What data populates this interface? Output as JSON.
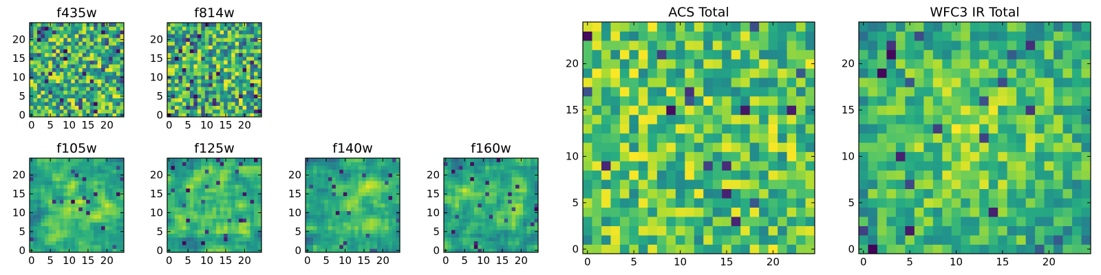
{
  "colormap": "viridis",
  "colors": {
    "low": "#440154",
    "mid_low": "#31688e",
    "mid": "#35b779",
    "high": "#90d743",
    "top": "#fde725",
    "frame": "#000000",
    "background": "#ffffff"
  },
  "chart_data": [
    {
      "type": "heatmap",
      "title": "f435w",
      "grid_size": [
        25,
        25
      ],
      "xlim": [
        -0.5,
        24.5
      ],
      "ylim": [
        -0.5,
        24.5
      ],
      "xticks": [
        "0",
        "5",
        "10",
        "15",
        "20"
      ],
      "yticks": [
        "0",
        "5",
        "10",
        "15",
        "20"
      ],
      "pattern": "uniform-noise",
      "seed": 435,
      "smoothing": 0,
      "value_range": [
        0.3,
        1.0
      ],
      "outlier_rate": 0.06
    },
    {
      "type": "heatmap",
      "title": "f814w",
      "grid_size": [
        25,
        25
      ],
      "xlim": [
        -0.5,
        24.5
      ],
      "ylim": [
        -0.5,
        24.5
      ],
      "xticks": [
        "0",
        "5",
        "10",
        "15",
        "20"
      ],
      "yticks": [
        "0",
        "5",
        "10",
        "15",
        "20"
      ],
      "pattern": "uniform-noise",
      "seed": 814,
      "smoothing": 0,
      "value_range": [
        0.3,
        1.0
      ],
      "outlier_rate": 0.06
    },
    {
      "type": "heatmap",
      "title": "f105w",
      "grid_size": [
        25,
        25
      ],
      "xlim": [
        -0.5,
        24.5
      ],
      "ylim": [
        -0.5,
        24.5
      ],
      "xticks": [
        "0",
        "5",
        "10",
        "15",
        "20"
      ],
      "yticks": [
        "0",
        "5",
        "10",
        "15",
        "20"
      ],
      "pattern": "smoothed-noise-bright-center",
      "seed": 105,
      "smoothing": 1,
      "value_range": [
        0.35,
        1.0
      ],
      "outlier_rate": 0.03
    },
    {
      "type": "heatmap",
      "title": "f125w",
      "grid_size": [
        25,
        25
      ],
      "xlim": [
        -0.5,
        24.5
      ],
      "ylim": [
        -0.5,
        24.5
      ],
      "xticks": [
        "0",
        "5",
        "10",
        "15",
        "20"
      ],
      "yticks": [
        "0",
        "5",
        "10",
        "15",
        "20"
      ],
      "pattern": "smoothed-noise-bright-center",
      "seed": 125,
      "smoothing": 1,
      "value_range": [
        0.35,
        1.0
      ],
      "outlier_rate": 0.03
    },
    {
      "type": "heatmap",
      "title": "f140w",
      "grid_size": [
        25,
        25
      ],
      "xlim": [
        -0.5,
        24.5
      ],
      "ylim": [
        -0.5,
        24.5
      ],
      "xticks": [
        "0",
        "5",
        "10",
        "15",
        "20"
      ],
      "yticks": [
        "0",
        "5",
        "10",
        "15",
        "20"
      ],
      "pattern": "smoothed-noise-bright-center",
      "seed": 140,
      "smoothing": 1,
      "value_range": [
        0.35,
        1.0
      ],
      "outlier_rate": 0.03
    },
    {
      "type": "heatmap",
      "title": "f160w",
      "grid_size": [
        25,
        25
      ],
      "xlim": [
        -0.5,
        24.5
      ],
      "ylim": [
        -0.5,
        24.5
      ],
      "xticks": [
        "0",
        "5",
        "10",
        "15",
        "20"
      ],
      "yticks": [
        "0",
        "5",
        "10",
        "15",
        "20"
      ],
      "pattern": "smoothed-noise-bright-center",
      "seed": 160,
      "smoothing": 1,
      "value_range": [
        0.35,
        1.0
      ],
      "outlier_rate": 0.03
    },
    {
      "type": "heatmap",
      "title": "ACS Total",
      "grid_size": [
        25,
        25
      ],
      "xlim": [
        -0.5,
        24.5
      ],
      "ylim": [
        -0.5,
        24.5
      ],
      "xticks": [
        "0",
        "5",
        "10",
        "15",
        "20"
      ],
      "yticks": [
        "0",
        "5",
        "10",
        "15",
        "20"
      ],
      "pattern": "uniform-noise",
      "seed": 9001,
      "smoothing": 0,
      "value_range": [
        0.45,
        1.0
      ],
      "outlier_rate": 0.025
    },
    {
      "type": "heatmap",
      "title": "WFC3 IR Total",
      "grid_size": [
        25,
        25
      ],
      "xlim": [
        -0.5,
        24.5
      ],
      "ylim": [
        -0.5,
        24.5
      ],
      "xticks": [
        "0",
        "5",
        "10",
        "15",
        "20"
      ],
      "yticks": [
        "0",
        "5",
        "10",
        "15",
        "20"
      ],
      "pattern": "smoothed-noise-bright-center",
      "seed": 9002,
      "smoothing": 0,
      "value_range": [
        0.45,
        1.0
      ],
      "outlier_rate": 0.03
    }
  ]
}
